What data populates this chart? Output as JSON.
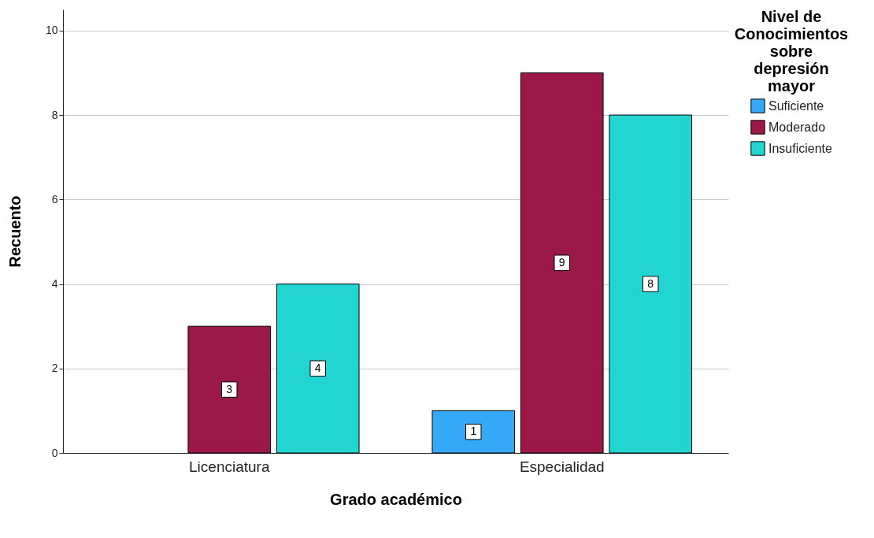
{
  "chart_data": {
    "type": "bar",
    "xlabel": "Grado académico",
    "ylabel": "Recuento",
    "legend_title": "Nivel de Conocimientos sobre depresión mayor",
    "categories": [
      "Licenciatura",
      "Especialidad"
    ],
    "series": [
      {
        "name": "Suficiente",
        "color": "#35a9f7",
        "values": [
          null,
          1
        ]
      },
      {
        "name": "Moderado",
        "color": "#9c1848",
        "values": [
          3,
          9
        ]
      },
      {
        "name": "Insuficiente",
        "color": "#23d5d1",
        "values": [
          4,
          8
        ]
      }
    ],
    "ylim": [
      0,
      10.5
    ],
    "yticks": [
      0,
      2,
      4,
      6,
      8,
      10
    ],
    "grid": "y",
    "legend": "top right",
    "data_labels": true
  }
}
